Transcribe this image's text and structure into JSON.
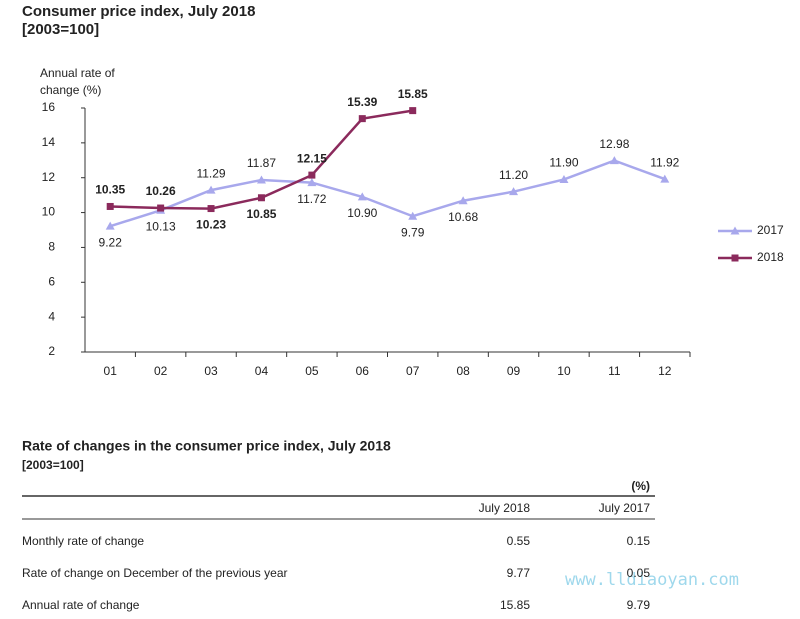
{
  "chart_data": {
    "type": "line",
    "title": "Consumer price index, July 2018",
    "subtitle": "[2003=100]",
    "y_label": [
      "Annual rate of",
      "change (%)"
    ],
    "categories": [
      "01",
      "02",
      "03",
      "04",
      "05",
      "06",
      "07",
      "08",
      "09",
      "10",
      "11",
      "12"
    ],
    "series": [
      {
        "name": "2017",
        "color": "#a8a8ec",
        "marker": "triangle",
        "values": [
          9.22,
          10.13,
          11.29,
          11.87,
          11.72,
          10.9,
          9.79,
          10.68,
          11.2,
          11.9,
          12.98,
          11.92
        ],
        "value_labels": [
          "9.22",
          "10.13",
          "11.29",
          "11.87",
          "11.72",
          "10.90",
          "9.79",
          "10.68",
          "11.20",
          "11.90",
          "12.98",
          "11.92"
        ]
      },
      {
        "name": "2018",
        "color": "#8b2a5c",
        "marker": "square",
        "values": [
          10.35,
          10.26,
          10.23,
          10.85,
          12.15,
          15.39,
          15.85,
          null,
          null,
          null,
          null,
          null
        ],
        "value_labels": [
          "10.35",
          "10.26",
          "10.23",
          "10.85",
          "12.15",
          "15.39",
          "15.85",
          null,
          null,
          null,
          null,
          null
        ]
      }
    ],
    "ylim": [
      2,
      16
    ],
    "yticks": [
      2,
      4,
      6,
      8,
      10,
      12,
      14,
      16
    ],
    "grid": false,
    "legend": "right"
  },
  "table": {
    "title": "Rate of changes in the consumer price index, July 2018",
    "subtitle": "[2003=100]",
    "unit": "(%)",
    "columns": [
      "July 2018",
      "July 2017"
    ],
    "rows": [
      {
        "label": "Monthly rate of change",
        "values": [
          "0.55",
          "0.15"
        ]
      },
      {
        "label": "Rate of change on December of the previous year",
        "values": [
          "9.77",
          "0.05"
        ]
      },
      {
        "label": "Annual rate of change",
        "values": [
          "15.85",
          "9.79"
        ]
      }
    ]
  },
  "watermark": "www.lldiaoyan.com"
}
